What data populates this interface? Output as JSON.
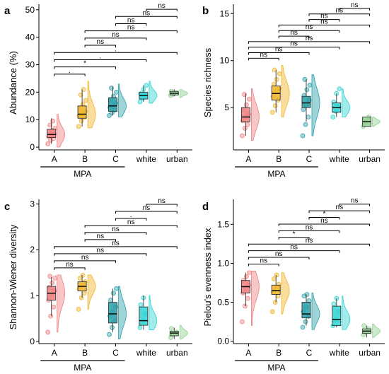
{
  "chart_data": [
    {
      "panel": "a",
      "type": "box",
      "ylabel": "Abundance (%)",
      "categories": [
        "A",
        "B",
        "C",
        "white",
        "urban"
      ],
      "group_label": "MPA",
      "yticks": [
        0,
        10,
        20,
        30,
        40,
        50
      ],
      "ylim": [
        -1,
        52
      ],
      "groups": [
        {
          "q1": 3.5,
          "median": 4.6,
          "q3": 6.5,
          "lo": 1.2,
          "hi": 10.5,
          "violin": [
            0,
            12
          ],
          "points": [
            1.2,
            2.5,
            3.2,
            3.8,
            4.3,
            4.8,
            5.3,
            6.0,
            6.8,
            8.0,
            9.5
          ]
        },
        {
          "q1": 10.5,
          "median": 12.0,
          "q3": 15.0,
          "lo": 7.5,
          "hi": 21.0,
          "violin": [
            7,
            24
          ],
          "points": [
            7.5,
            9.5,
            10.8,
            11.5,
            12.2,
            13.0,
            14.0,
            15.5,
            17.0,
            19.0,
            21.0
          ]
        },
        {
          "q1": 13.0,
          "median": 15.0,
          "q3": 18.0,
          "lo": 11.5,
          "hi": 22.0,
          "violin": [
            11,
            23
          ],
          "points": [
            11.5,
            12.5,
            13.5,
            14.5,
            15.2,
            16.0,
            17.0,
            18.5,
            20.0,
            21.5
          ]
        },
        {
          "q1": 17.5,
          "median": 18.8,
          "q3": 20.0,
          "lo": 16.5,
          "hi": 22.5,
          "violin": [
            16,
            24
          ],
          "points": [
            16.5,
            17.8,
            18.6,
            19.4,
            21.0,
            22.5
          ]
        },
        {
          "q1": 19.0,
          "median": 19.6,
          "q3": 20.3,
          "lo": 18.5,
          "hi": 21.0,
          "violin": [
            18,
            21
          ],
          "points": [
            18.8,
            19.3,
            19.8,
            20.3
          ]
        }
      ],
      "comparisons": [
        {
          "from": 0,
          "to": 1,
          "label": "."
        },
        {
          "from": 0,
          "to": 2,
          "label": "*"
        },
        {
          "from": 0,
          "to": 3,
          "label": "."
        },
        {
          "from": 0,
          "to": 4,
          "label": "."
        },
        {
          "from": 1,
          "to": 2,
          "label": "ns"
        },
        {
          "from": 1,
          "to": 3,
          "label": "ns"
        },
        {
          "from": 1,
          "to": 4,
          "label": "ns"
        },
        {
          "from": 2,
          "to": 3,
          "label": "ns"
        },
        {
          "from": 2,
          "to": 4,
          "label": "ns"
        },
        {
          "from": 3,
          "to": 4,
          "label": "ns"
        }
      ]
    },
    {
      "panel": "b",
      "type": "box",
      "ylabel": "Species richness",
      "categories": [
        "A",
        "B",
        "C",
        "white",
        "urban"
      ],
      "group_label": "MPA",
      "yticks": [
        5,
        10,
        15
      ],
      "ylim": [
        0.5,
        16
      ],
      "groups": [
        {
          "q1": 3.5,
          "median": 4.0,
          "q3": 5.0,
          "lo": 2.0,
          "hi": 6.5,
          "violin": [
            1.5,
            7
          ],
          "points": [
            2.0,
            2.8,
            3.2,
            3.6,
            4.0,
            4.3,
            4.8,
            5.3,
            5.9,
            6.4
          ]
        },
        {
          "q1": 5.8,
          "median": 6.5,
          "q3": 7.3,
          "lo": 4.5,
          "hi": 9.0,
          "violin": [
            4,
            9.5
          ],
          "points": [
            4.5,
            5.2,
            5.8,
            6.2,
            6.6,
            7.0,
            7.5,
            8.0,
            8.6,
            9.0
          ]
        },
        {
          "q1": 5.0,
          "median": 5.5,
          "q3": 6.2,
          "lo": 3.5,
          "hi": 8.0,
          "violin": [
            2,
            8.5
          ],
          "points": [
            2.0,
            3.2,
            4.0,
            4.8,
            5.3,
            5.8,
            6.3,
            6.9,
            7.4,
            8.0
          ]
        },
        {
          "q1": 4.5,
          "median": 5.0,
          "q3": 5.5,
          "lo": 4.0,
          "hi": 6.5,
          "violin": [
            4,
            7
          ],
          "points": [
            4.0,
            4.6,
            5.1,
            5.6,
            6.5,
            7.0
          ]
        },
        {
          "q1": 3.0,
          "median": 3.5,
          "q3": 4.0,
          "lo": 3.0,
          "hi": 4.0,
          "violin": [
            3,
            4
          ],
          "points": [
            3.0,
            3.5,
            4.0
          ]
        }
      ],
      "comparisons": [
        {
          "from": 0,
          "to": 1,
          "label": "ns"
        },
        {
          "from": 0,
          "to": 2,
          "label": "ns"
        },
        {
          "from": 0,
          "to": 3,
          "label": "ns"
        },
        {
          "from": 0,
          "to": 4,
          "label": "ns"
        },
        {
          "from": 1,
          "to": 2,
          "label": "ns"
        },
        {
          "from": 1,
          "to": 3,
          "label": "ns"
        },
        {
          "from": 1,
          "to": 4,
          "label": "ns"
        },
        {
          "from": 2,
          "to": 3,
          "label": "ns"
        },
        {
          "from": 2,
          "to": 4,
          "label": "ns"
        },
        {
          "from": 3,
          "to": 4,
          "label": "ns"
        }
      ]
    },
    {
      "panel": "c",
      "type": "box",
      "ylabel": "Shannon-Wiener diversity",
      "categories": [
        "A",
        "B",
        "C",
        "white",
        "urban"
      ],
      "group_label": "MPA",
      "yticks": [
        0,
        1,
        2,
        3
      ],
      "ylim": [
        -0.05,
        3.1
      ],
      "groups": [
        {
          "q1": 0.9,
          "median": 1.05,
          "q3": 1.2,
          "lo": 0.55,
          "hi": 1.4,
          "violin": [
            0.2,
            1.45
          ],
          "points": [
            0.2,
            0.55,
            0.75,
            0.9,
            1.0,
            1.1,
            1.18,
            1.28,
            1.38,
            1.42
          ]
        },
        {
          "q1": 1.1,
          "median": 1.2,
          "q3": 1.3,
          "lo": 0.95,
          "hi": 1.45,
          "violin": [
            0.7,
            1.45
          ],
          "points": [
            0.7,
            0.95,
            1.05,
            1.15,
            1.22,
            1.3,
            1.38,
            1.44
          ]
        },
        {
          "q1": 0.4,
          "median": 0.6,
          "q3": 0.85,
          "lo": 0.2,
          "hi": 1.15,
          "violin": [
            0.05,
            1.2
          ],
          "points": [
            0.15,
            0.3,
            0.45,
            0.55,
            0.65,
            0.75,
            0.9,
            1.05,
            1.15
          ]
        },
        {
          "q1": 0.35,
          "median": 0.45,
          "q3": 0.75,
          "lo": 0.25,
          "hi": 1.0,
          "violin": [
            0.25,
            1.0
          ],
          "points": [
            0.3,
            0.45,
            0.6,
            0.8,
            0.95
          ]
        },
        {
          "q1": 0.12,
          "median": 0.18,
          "q3": 0.22,
          "lo": 0.05,
          "hi": 0.3,
          "violin": [
            0.05,
            0.35
          ],
          "points": [
            0.08,
            0.15,
            0.2,
            0.28
          ]
        }
      ],
      "comparisons": [
        {
          "from": 0,
          "to": 1,
          "label": "ns"
        },
        {
          "from": 0,
          "to": 2,
          "label": "ns"
        },
        {
          "from": 0,
          "to": 3,
          "label": "ns"
        },
        {
          "from": 0,
          "to": 4,
          "label": "ns"
        },
        {
          "from": 1,
          "to": 2,
          "label": "ns"
        },
        {
          "from": 1,
          "to": 3,
          "label": "ns"
        },
        {
          "from": 1,
          "to": 4,
          "label": "ns"
        },
        {
          "from": 2,
          "to": 3,
          "label": "."
        },
        {
          "from": 2,
          "to": 4,
          "label": "ns"
        },
        {
          "from": 3,
          "to": 4,
          "label": "ns"
        }
      ]
    },
    {
      "panel": "d",
      "type": "box",
      "ylabel": "Pielou's evenness index",
      "categories": [
        "A",
        "B",
        "C",
        "white",
        "urban"
      ],
      "group_label": "MPA",
      "yticks": [
        0.0,
        0.5,
        1.0,
        1.5
      ],
      "ytick_labels": [
        "0.0",
        "0.5",
        "1.0",
        "1.5"
      ],
      "ylim": [
        -0.03,
        1.82
      ],
      "groups": [
        {
          "q1": 0.62,
          "median": 0.7,
          "q3": 0.78,
          "lo": 0.45,
          "hi": 0.88,
          "violin": [
            0.2,
            0.9
          ],
          "points": [
            0.25,
            0.45,
            0.55,
            0.62,
            0.68,
            0.72,
            0.78,
            0.83,
            0.88
          ]
        },
        {
          "q1": 0.6,
          "median": 0.65,
          "q3": 0.72,
          "lo": 0.5,
          "hi": 0.85,
          "violin": [
            0.35,
            0.88
          ],
          "points": [
            0.38,
            0.5,
            0.58,
            0.63,
            0.68,
            0.73,
            0.8,
            0.85
          ]
        },
        {
          "q1": 0.3,
          "median": 0.35,
          "q3": 0.5,
          "lo": 0.2,
          "hi": 0.6,
          "violin": [
            0.15,
            0.62
          ],
          "points": [
            0.18,
            0.25,
            0.32,
            0.38,
            0.44,
            0.52,
            0.58,
            0.6
          ]
        },
        {
          "q1": 0.2,
          "median": 0.28,
          "q3": 0.45,
          "lo": 0.18,
          "hi": 0.55,
          "violin": [
            0.15,
            0.58
          ],
          "points": [
            0.2,
            0.28,
            0.38,
            0.48,
            0.55
          ]
        },
        {
          "q1": 0.1,
          "median": 0.13,
          "q3": 0.16,
          "lo": 0.05,
          "hi": 0.2,
          "violin": [
            0.05,
            0.22
          ],
          "points": [
            0.08,
            0.12,
            0.16,
            0.2
          ]
        }
      ],
      "comparisons": [
        {
          "from": 0,
          "to": 1,
          "label": "ns"
        },
        {
          "from": 0,
          "to": 2,
          "label": "ns"
        },
        {
          "from": 0,
          "to": 3,
          "label": "ns"
        },
        {
          "from": 0,
          "to": 4,
          "label": "ns"
        },
        {
          "from": 1,
          "to": 2,
          "label": "*"
        },
        {
          "from": 1,
          "to": 3,
          "label": "ns"
        },
        {
          "from": 1,
          "to": 4,
          "label": "ns"
        },
        {
          "from": 2,
          "to": 3,
          "label": "*"
        },
        {
          "from": 2,
          "to": 4,
          "label": "ns"
        },
        {
          "from": 3,
          "to": 4,
          "label": "ns"
        }
      ]
    }
  ],
  "colors": {
    "A": "#f08080",
    "B": "#f0b429",
    "C": "#2a9fa8",
    "white": "#2fd3d3",
    "urban": "#8fd18f"
  }
}
